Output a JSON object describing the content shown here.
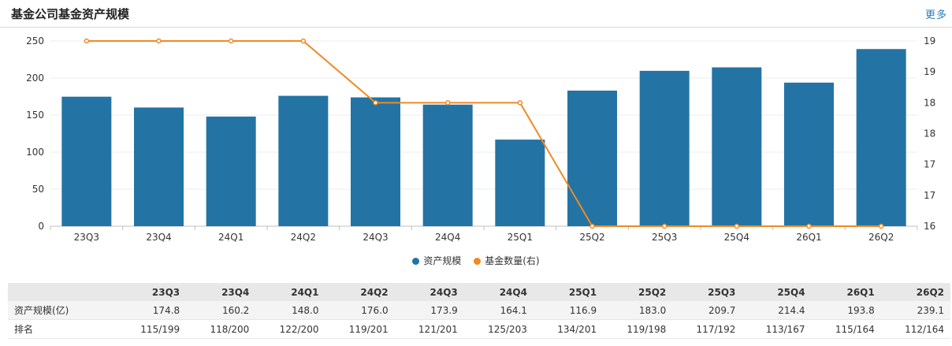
{
  "header": {
    "title": "基金公司基金资产规模",
    "more_label": "更多"
  },
  "colors": {
    "bar": "#2374a4",
    "line": "#f08a24",
    "link": "#2a7db8"
  },
  "chart_data": {
    "type": "bar",
    "categories": [
      "23Q3",
      "23Q4",
      "24Q1",
      "24Q2",
      "24Q3",
      "24Q4",
      "25Q1",
      "25Q2",
      "25Q3",
      "25Q4",
      "26Q1",
      "26Q2"
    ],
    "series": [
      {
        "name": "资产规模",
        "type": "bar",
        "axis": "left",
        "values": [
          174.8,
          160.2,
          148.0,
          176.0,
          173.9,
          164.1,
          116.9,
          183.0,
          209.7,
          214.4,
          193.8,
          239.1
        ]
      },
      {
        "name": "基金数量(右)",
        "type": "line",
        "axis": "right",
        "values": [
          19,
          19,
          19,
          19,
          18,
          18,
          18,
          16,
          16,
          16,
          16,
          16
        ]
      }
    ],
    "y_left": {
      "ticks": [
        "0",
        "50",
        "100",
        "150",
        "200",
        "250"
      ],
      "lim": [
        0,
        250
      ]
    },
    "y_right": {
      "ticks": [
        "16",
        "17",
        "17",
        "18",
        "18",
        "19",
        "19"
      ],
      "lim": [
        16,
        19
      ]
    },
    "legend_position": "bottom-center",
    "grid": true
  },
  "table": {
    "columns": [
      "23Q3",
      "23Q4",
      "24Q1",
      "24Q2",
      "24Q3",
      "24Q4",
      "25Q1",
      "25Q2",
      "25Q3",
      "25Q4",
      "26Q1",
      "26Q2"
    ],
    "rows": [
      {
        "label": "资产规模(亿)",
        "values": [
          "174.8",
          "160.2",
          "148.0",
          "176.0",
          "173.9",
          "164.1",
          "116.9",
          "183.0",
          "209.7",
          "214.4",
          "193.8",
          "239.1"
        ]
      },
      {
        "label": "排名",
        "values": [
          "115/199",
          "118/200",
          "122/200",
          "119/201",
          "121/201",
          "125/203",
          "134/201",
          "119/198",
          "117/192",
          "113/167",
          "115/164",
          "112/164"
        ]
      }
    ]
  }
}
